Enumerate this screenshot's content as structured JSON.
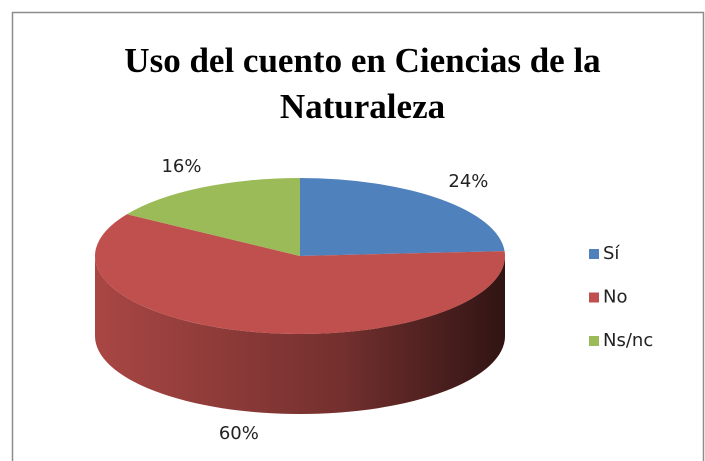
{
  "chart_data": {
    "type": "pie3d",
    "title": "Uso del cuento en Ciencias de la Naturaleza",
    "categories": [
      "Sí",
      "No",
      "Ns/nc"
    ],
    "values": [
      24,
      60,
      16
    ],
    "value_labels": [
      "24%",
      "60%",
      "16%"
    ],
    "colors": [
      "#4f81bd",
      "#c0504d",
      "#9bbb59"
    ],
    "legend": "right"
  }
}
